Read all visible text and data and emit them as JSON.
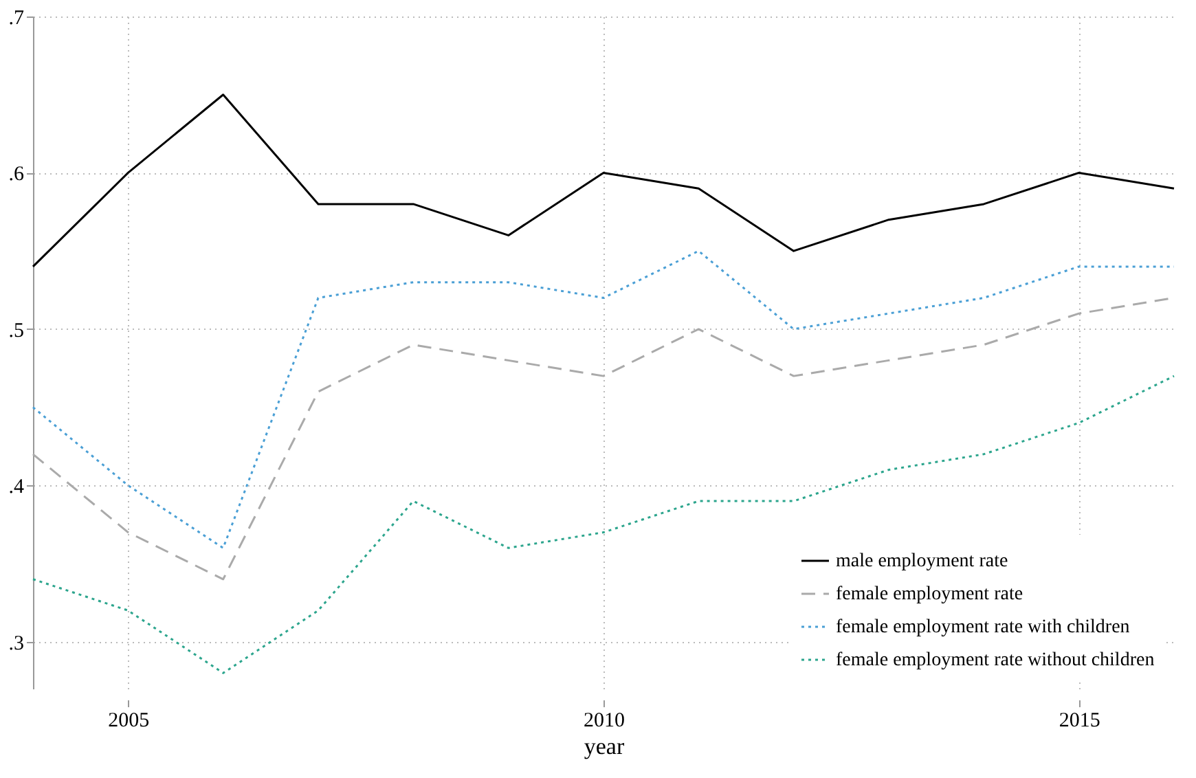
{
  "chart_data": {
    "type": "line",
    "xlabel": "year",
    "x": [
      2004,
      2005,
      2006,
      2007,
      2008,
      2009,
      2010,
      2011,
      2012,
      2013,
      2014,
      2015,
      2016
    ],
    "xlim": [
      2004,
      2016
    ],
    "xticks": [
      2005,
      2010,
      2015
    ],
    "ylim": [
      0.27,
      0.7
    ],
    "yticks": [
      {
        "value": 0.3,
        "label": ".3"
      },
      {
        "value": 0.4,
        "label": ".4"
      },
      {
        "value": 0.5,
        "label": ".5"
      },
      {
        "value": 0.6,
        "label": ".6"
      },
      {
        "value": 0.7,
        "label": ".7"
      }
    ],
    "grid": true,
    "legend": "bottom right",
    "marker": "none",
    "series": [
      {
        "name": "male employment rate",
        "color": "#000000",
        "line_style": "solid",
        "values": [
          0.54,
          0.6,
          0.65,
          0.58,
          0.58,
          0.56,
          0.6,
          0.59,
          0.55,
          0.57,
          0.58,
          0.6,
          0.59
        ]
      },
      {
        "name": "female employment rate",
        "color": "#aaaaaa",
        "line_style": "dashed",
        "values": [
          0.42,
          0.37,
          0.34,
          0.46,
          0.49,
          0.48,
          0.47,
          0.5,
          0.47,
          0.48,
          0.49,
          0.51,
          0.52
        ]
      },
      {
        "name": "female employment rate with children",
        "color": "#4a9fd5",
        "line_style": "dotted",
        "values": [
          0.45,
          0.4,
          0.36,
          0.52,
          0.53,
          0.53,
          0.52,
          0.55,
          0.5,
          0.51,
          0.52,
          0.54,
          0.54
        ]
      },
      {
        "name": "female employment rate without children",
        "color": "#2ca58d",
        "line_style": "dotted",
        "values": [
          0.34,
          0.32,
          0.28,
          0.32,
          0.39,
          0.36,
          0.37,
          0.39,
          0.39,
          0.41,
          0.42,
          0.44,
          0.47
        ]
      }
    ]
  }
}
